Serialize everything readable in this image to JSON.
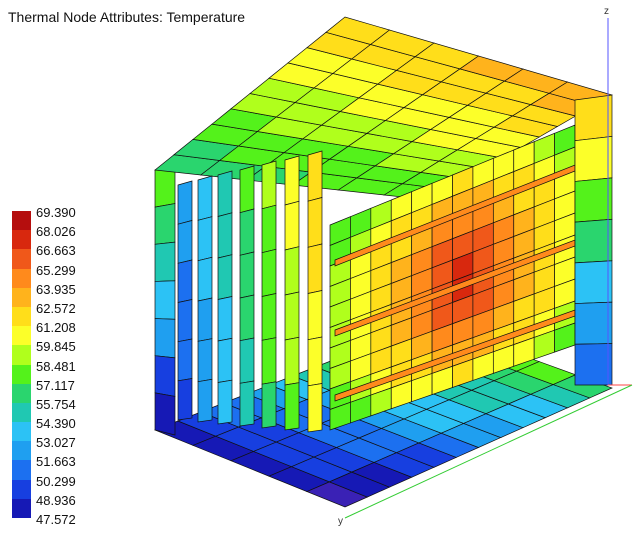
{
  "title": "Thermal Node Attributes: Temperature",
  "legend": {
    "values": [
      "69.390",
      "68.026",
      "66.663",
      "65.299",
      "63.935",
      "62.572",
      "61.208",
      "59.845",
      "58.481",
      "57.117",
      "55.754",
      "54.390",
      "53.027",
      "51.663",
      "50.299",
      "48.936",
      "47.572"
    ],
    "colors": [
      "#b50e0e",
      "#d8280e",
      "#f0581a",
      "#ff8a1c",
      "#ffb31c",
      "#ffde1a",
      "#fcff29",
      "#b0ff1c",
      "#54f21b",
      "#2ad56e",
      "#20c8b2",
      "#2cc2f5",
      "#1f9ff0",
      "#1c70f0",
      "#173fe0",
      "#1619b5",
      "#3a21b5"
    ]
  },
  "axes": {
    "z_label": "z",
    "y_label": "y"
  },
  "thermal_data": {
    "min": 47.572,
    "max": 69.39,
    "units_shown": false
  }
}
